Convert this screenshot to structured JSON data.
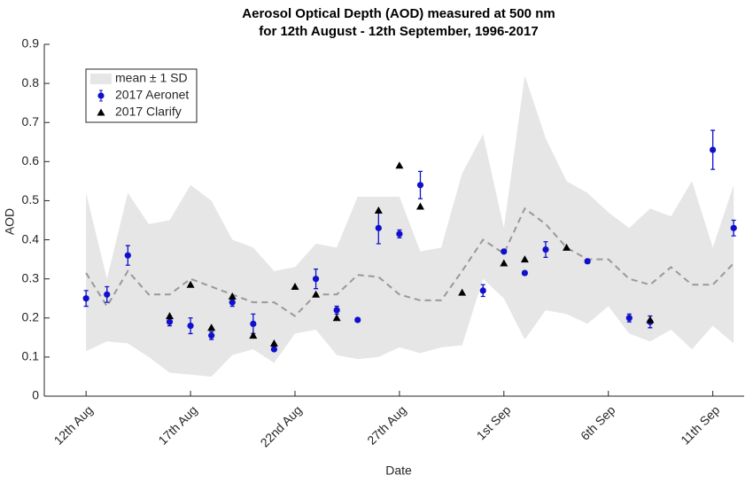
{
  "chart_data": {
    "type": "line",
    "title": "Aerosol Optical Depth (AOD) measured at 500 nm",
    "subtitle": "for 12th August - 12th September, 1996-2017",
    "x_label": "Date",
    "y_label": "AOD",
    "xlim": [
      "2017-08-10",
      "2017-09-12T12:00Z"
    ],
    "xticks": [
      {
        "value": "2017-08-12",
        "label": "12th Aug"
      },
      {
        "value": "2017-08-17",
        "label": "17th Aug"
      },
      {
        "value": "2017-08-22",
        "label": "22nd Aug"
      },
      {
        "value": "2017-08-27",
        "label": "27th Aug"
      },
      {
        "value": "2017-09-01",
        "label": "1st Sep"
      },
      {
        "value": "2017-09-06",
        "label": "6th Sep"
      },
      {
        "value": "2017-09-11",
        "label": "11th Sep"
      }
    ],
    "ylim": [
      0,
      0.9
    ],
    "yticks": [
      0,
      0.1,
      0.2,
      0.3,
      0.4,
      0.5,
      0.6,
      0.7,
      0.8,
      0.9
    ],
    "legend": "upper left",
    "band": {
      "name": "mean ± 1 SD",
      "color": "#e6e6e6",
      "line_color": "#999999",
      "x": [
        "2017-08-12",
        "2017-08-13",
        "2017-08-14",
        "2017-08-15",
        "2017-08-16",
        "2017-08-17",
        "2017-08-18",
        "2017-08-19",
        "2017-08-20",
        "2017-08-21",
        "2017-08-22",
        "2017-08-23",
        "2017-08-24",
        "2017-08-25",
        "2017-08-26",
        "2017-08-27",
        "2017-08-28",
        "2017-08-29",
        "2017-08-30",
        "2017-08-31",
        "2017-09-01",
        "2017-09-02",
        "2017-09-03",
        "2017-09-04",
        "2017-09-05",
        "2017-09-06",
        "2017-09-07",
        "2017-09-08",
        "2017-09-09",
        "2017-09-10",
        "2017-09-11",
        "2017-09-12"
      ],
      "mean": [
        0.315,
        0.23,
        0.32,
        0.26,
        0.26,
        0.3,
        0.28,
        0.26,
        0.24,
        0.24,
        0.205,
        0.26,
        0.26,
        0.31,
        0.305,
        0.26,
        0.245,
        0.245,
        0.32,
        0.4,
        0.365,
        0.48,
        0.44,
        0.38,
        0.35,
        0.35,
        0.3,
        0.285,
        0.33,
        0.285,
        0.285,
        0.34
      ],
      "upper": [
        0.52,
        0.3,
        0.52,
        0.44,
        0.45,
        0.54,
        0.5,
        0.4,
        0.38,
        0.32,
        0.33,
        0.39,
        0.38,
        0.51,
        0.51,
        0.51,
        0.37,
        0.38,
        0.57,
        0.67,
        0.43,
        0.82,
        0.66,
        0.55,
        0.52,
        0.47,
        0.43,
        0.48,
        0.46,
        0.55,
        0.38,
        0.54
      ],
      "lower": [
        0.115,
        0.14,
        0.135,
        0.1,
        0.06,
        0.055,
        0.05,
        0.105,
        0.12,
        0.085,
        0.16,
        0.17,
        0.105,
        0.095,
        0.1,
        0.125,
        0.11,
        0.125,
        0.13,
        0.3,
        0.25,
        0.145,
        0.22,
        0.21,
        0.185,
        0.23,
        0.16,
        0.14,
        0.17,
        0.12,
        0.18,
        0.135
      ]
    },
    "series": [
      {
        "name": "2017 Aeronet",
        "color": "#1010cc",
        "marker": "circle",
        "x": [
          "2017-08-12",
          "2017-08-13",
          "2017-08-14",
          "2017-08-16",
          "2017-08-17",
          "2017-08-18",
          "2017-08-19",
          "2017-08-20",
          "2017-08-21",
          "2017-08-23",
          "2017-08-24",
          "2017-08-25",
          "2017-08-26",
          "2017-08-27",
          "2017-08-28",
          "2017-08-31",
          "2017-09-01",
          "2017-09-02",
          "2017-09-03",
          "2017-09-05",
          "2017-09-07",
          "2017-09-08",
          "2017-09-11",
          "2017-09-12"
        ],
        "values": [
          0.25,
          0.26,
          0.36,
          0.19,
          0.18,
          0.155,
          0.24,
          0.185,
          0.12,
          0.3,
          0.22,
          0.195,
          0.43,
          0.415,
          0.54,
          0.27,
          0.37,
          0.315,
          0.375,
          0.345,
          0.2,
          0.19,
          0.63,
          0.43
        ],
        "errors": [
          0.02,
          0.02,
          0.025,
          0.01,
          0.02,
          0.01,
          0.01,
          0.025,
          0.005,
          0.025,
          0.01,
          0.005,
          0.04,
          0.01,
          0.035,
          0.015,
          0.005,
          0.005,
          0.02,
          0.005,
          0.01,
          0.015,
          0.05,
          0.02
        ]
      },
      {
        "name": "2017 Clarify",
        "color": "#000000",
        "marker": "triangle",
        "x": [
          "2017-08-16",
          "2017-08-17",
          "2017-08-18",
          "2017-08-19",
          "2017-08-20",
          "2017-08-21",
          "2017-08-22",
          "2017-08-23",
          "2017-08-24",
          "2017-08-26",
          "2017-08-27",
          "2017-08-28",
          "2017-08-30",
          "2017-09-01",
          "2017-09-02",
          "2017-09-04",
          "2017-09-08"
        ],
        "values": [
          0.205,
          0.285,
          0.175,
          0.255,
          0.155,
          0.135,
          0.28,
          0.26,
          0.2,
          0.475,
          0.59,
          0.485,
          0.265,
          0.34,
          0.35,
          0.38,
          0.195
        ]
      }
    ]
  }
}
